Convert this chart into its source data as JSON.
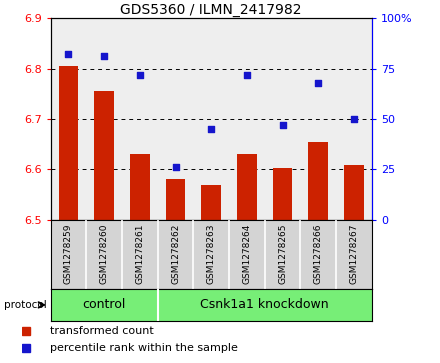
{
  "title": "GDS5360 / ILMN_2417982",
  "samples": [
    "GSM1278259",
    "GSM1278260",
    "GSM1278261",
    "GSM1278262",
    "GSM1278263",
    "GSM1278264",
    "GSM1278265",
    "GSM1278266",
    "GSM1278267"
  ],
  "bar_values": [
    6.805,
    6.755,
    6.63,
    6.58,
    6.568,
    6.63,
    6.603,
    6.655,
    6.608
  ],
  "scatter_values": [
    82,
    81,
    72,
    26,
    45,
    72,
    47,
    68,
    50
  ],
  "ylim_left": [
    6.5,
    6.9
  ],
  "ylim_right": [
    0,
    100
  ],
  "yticks_left": [
    6.5,
    6.6,
    6.7,
    6.8,
    6.9
  ],
  "yticks_right": [
    0,
    25,
    50,
    75,
    100
  ],
  "yticklabels_right": [
    "0",
    "25",
    "50",
    "75",
    "100%"
  ],
  "bar_color": "#cc2200",
  "scatter_color": "#1515cc",
  "plot_bg": "#ffffff",
  "cell_bg": "#d4d4d4",
  "group_bg": "#77ee77",
  "group_divider": 3,
  "control_label": "control",
  "knockdown_label": "Csnk1a1 knockdown",
  "protocol_label": "protocol",
  "legend_bar_label": "transformed count",
  "legend_scatter_label": "percentile rank within the sample",
  "title_fontsize": 10,
  "tick_fontsize": 8,
  "sample_fontsize": 6.5,
  "group_fontsize": 9
}
